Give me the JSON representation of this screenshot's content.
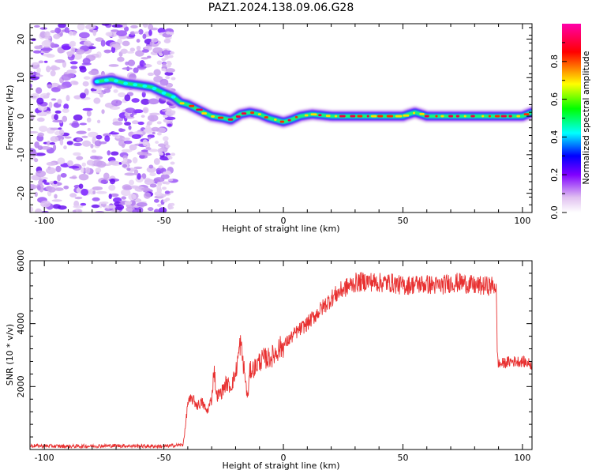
{
  "title": "PAZ1.2024.138.09.06.G28",
  "chart_data": [
    {
      "type": "heatmap",
      "xlabel": "Height of straight line (km)",
      "ylabel": "Frequency (Hz)",
      "xlim": [
        -106,
        104
      ],
      "ylim": [
        -25,
        24
      ],
      "xticks": [
        -100,
        -50,
        0,
        50,
        100
      ],
      "yticks": [
        -20,
        -10,
        0,
        10,
        20
      ],
      "colorbar": {
        "label": "Normalized spectral amplitude",
        "range": [
          0,
          1
        ],
        "ticks": [
          0.0,
          0.2,
          0.4,
          0.6,
          0.8
        ],
        "colors": [
          "#ffffff",
          "#e0c0f0",
          "#8000ff",
          "#0000ff",
          "#00ffff",
          "#00ff00",
          "#ffff00",
          "#ff0000",
          "#ff00aa"
        ]
      },
      "ridge": {
        "x": [
          -78,
          -72,
          -66,
          -60,
          -55,
          -50,
          -46,
          -43,
          -40,
          -35,
          -30,
          -25,
          -22,
          -18,
          -14,
          -10,
          -6,
          -3,
          0,
          3,
          7,
          12,
          20,
          30,
          40,
          50,
          55,
          60,
          70,
          80,
          90,
          100,
          104
        ],
        "y": [
          9,
          9.5,
          8.5,
          8,
          7.5,
          6,
          5,
          3.5,
          3,
          1.5,
          0,
          -0.5,
          -1,
          0.5,
          1,
          0.5,
          -0.5,
          -1,
          -1.5,
          -1,
          0,
          0.5,
          0,
          0,
          0,
          0,
          1,
          0,
          0,
          0,
          0,
          0,
          1
        ]
      },
      "noise_region_x": [
        -106,
        -46
      ]
    },
    {
      "type": "line",
      "xlabel": "Height of straight line (km)",
      "ylabel": "SNR (10 * v/v)",
      "xlim": [
        -106,
        104
      ],
      "ylim": [
        0,
        6000
      ],
      "xticks": [
        -100,
        -50,
        0,
        50,
        100
      ],
      "yticks": [
        2000,
        4000,
        6000
      ],
      "color": "#e83030",
      "series": [
        {
          "x": [
            -106,
            -90,
            -70,
            -50,
            -42,
            -41,
            -40,
            -38,
            -36,
            -34,
            -32,
            -30,
            -29,
            -28,
            -26,
            -24,
            -22,
            -20,
            -18,
            -16,
            -15,
            -14,
            -12,
            -10,
            -8,
            -6,
            -4,
            -2,
            0,
            5,
            10,
            15,
            20,
            25,
            30,
            35,
            40,
            45,
            50,
            55,
            60,
            65,
            70,
            75,
            80,
            85,
            89,
            89.5,
            90,
            95,
            100,
            104
          ],
          "y": [
            120,
            100,
            120,
            100,
            150,
            700,
            1500,
            1600,
            1400,
            1500,
            1200,
            1600,
            2600,
            1700,
            1800,
            2100,
            2000,
            2400,
            3400,
            2300,
            1600,
            2500,
            2600,
            2800,
            2900,
            2900,
            3000,
            3200,
            3300,
            3700,
            4000,
            4400,
            4800,
            5100,
            5300,
            5350,
            5300,
            5300,
            5200,
            5250,
            5250,
            5200,
            5300,
            5300,
            5200,
            5200,
            5200,
            3000,
            2700,
            2800,
            2800,
            2700
          ]
        }
      ]
    }
  ]
}
